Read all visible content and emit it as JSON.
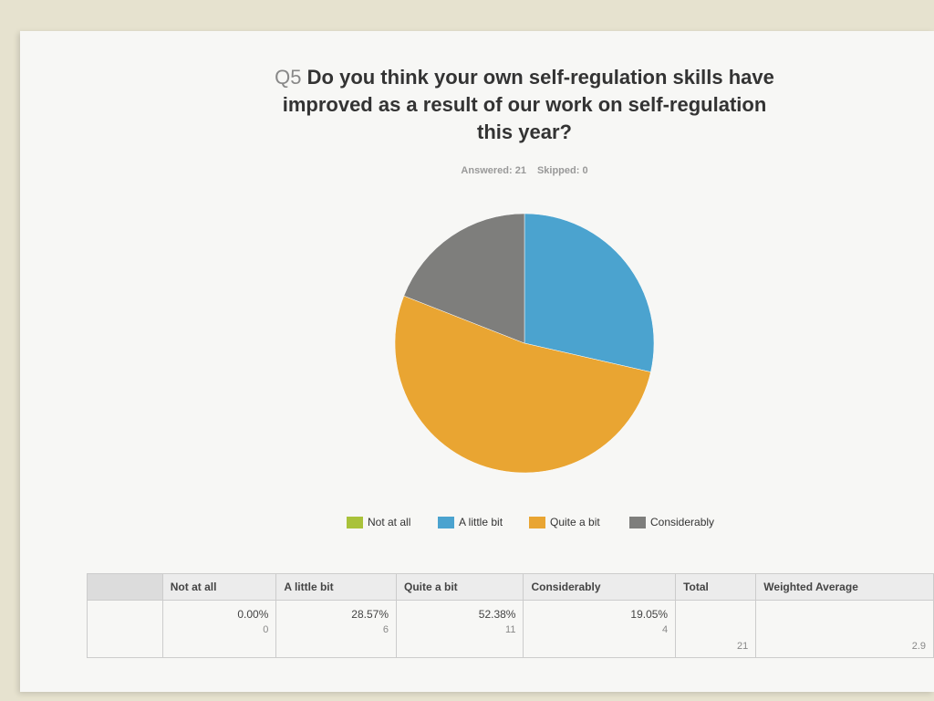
{
  "chart_data": {
    "type": "pie",
    "question_number": "Q5",
    "title": "Do you think your own self-regulation skills have improved as a result of our work on self-regulation this year?",
    "answered": "Answered: 21",
    "skipped": "Skipped: 0",
    "categories": [
      "Not at all",
      "A little bit",
      "Quite a bit",
      "Considerably"
    ],
    "values": [
      0,
      28.57,
      52.38,
      19.05
    ],
    "value_labels": [
      "0.00%",
      "28.57%",
      "52.38%",
      "19.05%"
    ],
    "colors": [
      "#a9c23a",
      "#4ba3cf",
      "#e9a532",
      "#7e7e7c"
    ],
    "legend_position": "bottom"
  },
  "table": {
    "total_header": "Total",
    "average_header": "Weighted Average",
    "counts": [
      0,
      6,
      11,
      4
    ],
    "total": 21,
    "weighted_average": "2.9"
  }
}
